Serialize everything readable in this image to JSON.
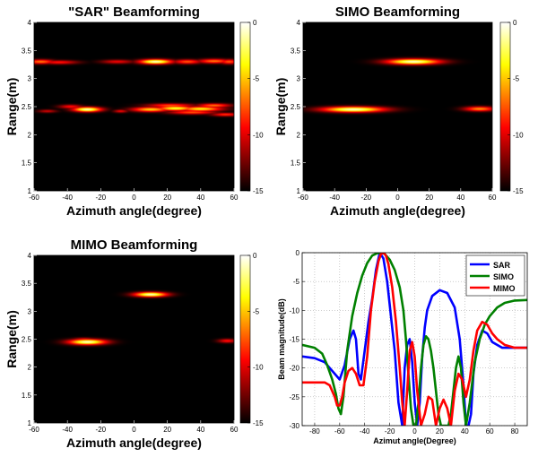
{
  "chart_data": [
    {
      "type": "heatmap",
      "title": "\"SAR\" Beamforming",
      "xlabel": "Azimuth angle(degree)",
      "ylabel": "Range(m)",
      "xlim": [
        -60,
        60
      ],
      "ylim": [
        1,
        4
      ],
      "xticks": [
        "-60",
        "-40",
        "-20",
        "0",
        "20",
        "40",
        "60"
      ],
      "yticks": [
        "1",
        "1.5",
        "2",
        "2.5",
        "3",
        "3.5",
        "4"
      ],
      "colorbar": {
        "range": [
          -15,
          0
        ],
        "ticks": [
          "0",
          "-5",
          "-10",
          "-15"
        ],
        "colormap": "hot"
      },
      "blobs": [
        {
          "x": 13,
          "y": 3.3,
          "level": 0.95,
          "sx": 7,
          "sy": 0.03
        },
        {
          "x": -56,
          "y": 3.3,
          "level": 0.55,
          "sx": 6,
          "sy": 0.028
        },
        {
          "x": -45,
          "y": 3.29,
          "level": 0.4,
          "sx": 8,
          "sy": 0.025
        },
        {
          "x": -10,
          "y": 3.3,
          "level": 0.35,
          "sx": 7,
          "sy": 0.025
        },
        {
          "x": 32,
          "y": 3.3,
          "level": 0.5,
          "sx": 6,
          "sy": 0.028
        },
        {
          "x": 48,
          "y": 3.31,
          "level": 0.55,
          "sx": 7,
          "sy": 0.028
        },
        {
          "x": 57,
          "y": 3.3,
          "level": 0.5,
          "sx": 4,
          "sy": 0.03
        },
        {
          "x": -28,
          "y": 2.45,
          "level": 0.95,
          "sx": 6,
          "sy": 0.03
        },
        {
          "x": -38,
          "y": 2.5,
          "level": 0.4,
          "sx": 5,
          "sy": 0.025
        },
        {
          "x": -52,
          "y": 2.42,
          "level": 0.3,
          "sx": 4,
          "sy": 0.02
        },
        {
          "x": 10,
          "y": 2.45,
          "level": 0.7,
          "sx": 8,
          "sy": 0.03
        },
        {
          "x": 25,
          "y": 2.47,
          "level": 0.8,
          "sx": 8,
          "sy": 0.03
        },
        {
          "x": 40,
          "y": 2.46,
          "level": 0.75,
          "sx": 9,
          "sy": 0.03
        },
        {
          "x": 22,
          "y": 2.52,
          "level": 0.5,
          "sx": 10,
          "sy": 0.025
        },
        {
          "x": 48,
          "y": 2.52,
          "level": 0.55,
          "sx": 7,
          "sy": 0.025
        },
        {
          "x": 35,
          "y": 2.4,
          "level": 0.5,
          "sx": 10,
          "sy": 0.025
        },
        {
          "x": 55,
          "y": 2.36,
          "level": 0.45,
          "sx": 6,
          "sy": 0.022
        },
        {
          "x": -8,
          "y": 2.42,
          "level": 0.35,
          "sx": 3,
          "sy": 0.02
        }
      ]
    },
    {
      "type": "heatmap",
      "title": "SIMO Beamforming",
      "xlabel": "Azimuth angle(degree)",
      "ylabel": "Range(m)",
      "xlim": [
        -60,
        60
      ],
      "ylim": [
        1,
        4
      ],
      "xticks": [
        "-60",
        "-40",
        "-20",
        "0",
        "20",
        "40",
        "60"
      ],
      "yticks": [
        "1",
        "1.5",
        "2",
        "2.5",
        "3",
        "3.5",
        "4"
      ],
      "colorbar": {
        "range": [
          -15,
          0
        ],
        "ticks": [
          "0",
          "-5",
          "-10",
          "-15"
        ],
        "colormap": "hot"
      },
      "blobs": [
        {
          "x": 10,
          "y": 3.3,
          "level": 0.95,
          "sx": 12,
          "sy": 0.035
        },
        {
          "x": -28,
          "y": 2.45,
          "level": 0.95,
          "sx": 14,
          "sy": 0.035
        },
        {
          "x": 52,
          "y": 2.46,
          "level": 0.6,
          "sx": 7,
          "sy": 0.03
        },
        {
          "x": -5,
          "y": 3.3,
          "level": 0.2,
          "sx": 2,
          "sy": 0.02
        }
      ]
    },
    {
      "type": "heatmap",
      "title": "MIMO Beamforming",
      "xlabel": "Azimuth angle(degree)",
      "ylabel": "Range(m)",
      "xlim": [
        -60,
        60
      ],
      "ylim": [
        1,
        4
      ],
      "xticks": [
        "-60",
        "-40",
        "-20",
        "0",
        "20",
        "40",
        "60"
      ],
      "yticks": [
        "1",
        "1.5",
        "2",
        "2.5",
        "3",
        "3.5",
        "4"
      ],
      "colorbar": {
        "range": [
          -15,
          0
        ],
        "ticks": [
          "0",
          "-5",
          "-10",
          "-15"
        ],
        "colormap": "hot"
      },
      "blobs": [
        {
          "x": 10,
          "y": 3.3,
          "level": 0.95,
          "sx": 7,
          "sy": 0.03
        },
        {
          "x": -28,
          "y": 2.45,
          "level": 0.95,
          "sx": 8,
          "sy": 0.035
        },
        {
          "x": -30,
          "y": 2.5,
          "level": 0.35,
          "sx": 5,
          "sy": 0.02
        },
        {
          "x": 56,
          "y": 2.47,
          "level": 0.4,
          "sx": 4,
          "sy": 0.025
        }
      ]
    },
    {
      "type": "line",
      "title": "",
      "xlabel": "Azimut angle(Degree)",
      "ylabel": "Beam magnitude(dB)",
      "xlim": [
        -90,
        90
      ],
      "ylim": [
        -30,
        0
      ],
      "xticks": [
        -80,
        -60,
        -40,
        -20,
        0,
        20,
        40,
        60,
        80
      ],
      "yticks": [
        0,
        -5,
        -10,
        -15,
        -20,
        -25,
        -30
      ],
      "grid": true,
      "legend": "top-right",
      "series": [
        {
          "name": "SAR",
          "color": "#0000ff",
          "x": [
            -90,
            -80,
            -72,
            -64,
            -60,
            -56,
            -52,
            -49,
            -47,
            -45,
            -43,
            -40,
            -37,
            -34,
            -31,
            -28,
            -25,
            -22,
            -19,
            -16,
            -13,
            -10,
            -8,
            -6,
            -4,
            -2,
            0,
            2,
            4,
            6,
            8,
            10,
            14,
            20,
            26,
            32,
            36,
            39,
            41,
            43,
            45,
            47,
            50,
            54,
            58,
            62,
            70,
            80,
            90
          ],
          "y": [
            -18,
            -18.3,
            -19,
            -21,
            -22,
            -19.5,
            -15,
            -13.5,
            -15,
            -21,
            -22,
            -17,
            -12,
            -8,
            -3,
            0,
            -1,
            -5,
            -11,
            -17,
            -26,
            -30,
            -20,
            -16,
            -15,
            -19,
            -26,
            -30,
            -26,
            -18,
            -13,
            -10,
            -7.5,
            -6.5,
            -7,
            -9.5,
            -15,
            -23,
            -30,
            -30,
            -28,
            -21,
            -16,
            -13.5,
            -14,
            -15.5,
            -16.5,
            -16.5,
            -16.5
          ]
        },
        {
          "name": "SIMO",
          "color": "#008000",
          "x": [
            -90,
            -80,
            -74,
            -70,
            -66,
            -63,
            -61,
            -59,
            -57,
            -54,
            -50,
            -46,
            -42,
            -38,
            -34,
            -30,
            -27,
            -24,
            -20,
            -16,
            -12,
            -9,
            -7,
            -5,
            -3,
            -1,
            1,
            3,
            5,
            7,
            9,
            11,
            13,
            15,
            17,
            19,
            21,
            23,
            25,
            27,
            29,
            31,
            33,
            35,
            37,
            39,
            41,
            44,
            48,
            52,
            56,
            60,
            66,
            72,
            80,
            90
          ],
          "y": [
            -16,
            -16.5,
            -17.5,
            -19.5,
            -22,
            -24.5,
            -27,
            -28,
            -25,
            -17,
            -11,
            -7,
            -4,
            -1.8,
            -0.5,
            -0.1,
            0,
            -0.2,
            -1.2,
            -3,
            -6,
            -10,
            -15,
            -21,
            -27,
            -30,
            -30,
            -26,
            -20,
            -16,
            -14.5,
            -15,
            -17,
            -20,
            -24,
            -28,
            -30,
            -30,
            -30,
            -30,
            -28,
            -24,
            -20,
            -18,
            -20,
            -26,
            -30,
            -26,
            -19,
            -15,
            -12.5,
            -11,
            -9.5,
            -8.7,
            -8.3,
            -8.2
          ]
        },
        {
          "name": "MIMO",
          "color": "#ff0000",
          "x": [
            -90,
            -80,
            -72,
            -68,
            -64,
            -62,
            -60,
            -58,
            -56,
            -53,
            -50,
            -47,
            -44,
            -41,
            -38,
            -35,
            -32,
            -29,
            -27,
            -25,
            -23,
            -21,
            -18,
            -15,
            -12,
            -10,
            -8,
            -6,
            -4,
            -2,
            0,
            2,
            5,
            8,
            11,
            14,
            17,
            20,
            23,
            26,
            29,
            32,
            35,
            38,
            41,
            44,
            47,
            50,
            54,
            58,
            62,
            66,
            72,
            80,
            90
          ],
          "y": [
            -22.5,
            -22.5,
            -22.5,
            -23,
            -25,
            -26.5,
            -26.5,
            -25,
            -22.5,
            -20.5,
            -20,
            -21,
            -23,
            -23,
            -18,
            -10,
            -5,
            -1.5,
            -0.2,
            0,
            -0.5,
            -2,
            -6,
            -12,
            -20,
            -26,
            -30,
            -24,
            -17,
            -15.5,
            -18,
            -24,
            -30,
            -28,
            -25,
            -25.5,
            -30,
            -27,
            -25.5,
            -27,
            -30,
            -24,
            -21,
            -22,
            -25,
            -22,
            -17,
            -13.5,
            -12,
            -12.5,
            -14,
            -15,
            -16,
            -16.5,
            -16.5
          ]
        }
      ]
    }
  ]
}
